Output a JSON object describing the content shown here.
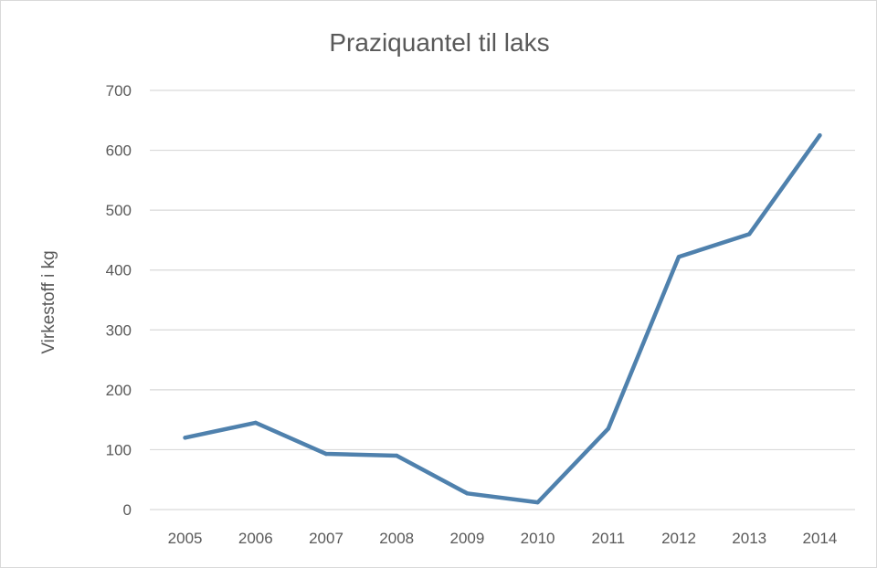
{
  "chart_data": {
    "type": "line",
    "title": "Praziquantel til laks",
    "xlabel": "",
    "ylabel": "Virkestoff i kg",
    "categories": [
      "2005",
      "2006",
      "2007",
      "2008",
      "2009",
      "2010",
      "2011",
      "2012",
      "2013",
      "2014"
    ],
    "series": [
      {
        "values": [
          120,
          145,
          93,
          90,
          27,
          12,
          135,
          422,
          460,
          625
        ],
        "color": "#4f81ad"
      }
    ],
    "ylim": [
      0,
      700
    ],
    "yticks": [
      "0",
      "100",
      "200",
      "300",
      "400",
      "500",
      "600",
      "700"
    ],
    "grid": true,
    "legend": "none",
    "colors": {
      "gridline": "#d9d9d9",
      "text": "#595959",
      "line": "#4f81ad"
    }
  }
}
